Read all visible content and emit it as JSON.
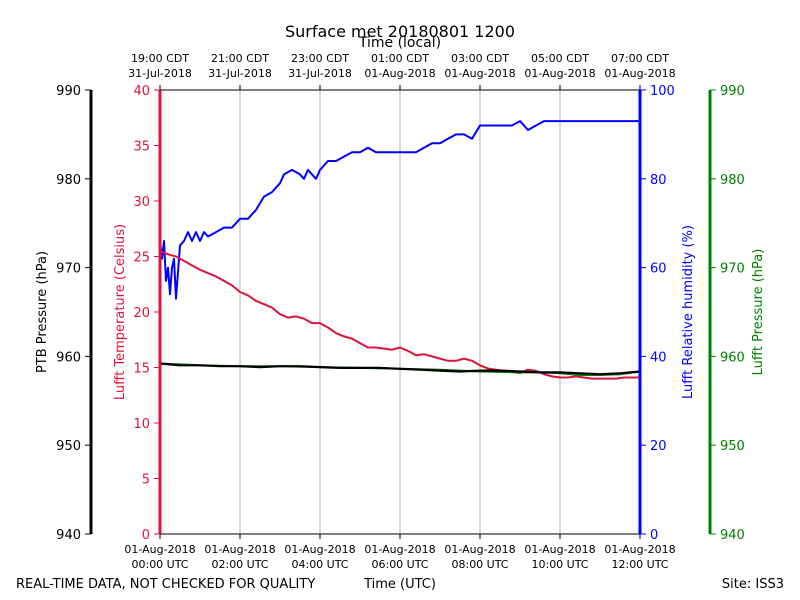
{
  "chart_data": {
    "type": "line",
    "title": "Surface met 20180801 1200",
    "x_top_label": "Time (local)",
    "x_bottom_label": "Time (UTC)",
    "footer_left": "REAL-TIME DATA, NOT CHECKED FOR QUALITY",
    "footer_right": "Site: ISS3",
    "x_range_hours": [
      0,
      12
    ],
    "x_ticks_utc": [
      {
        "hour": 0,
        "line1": "01-Aug-2018",
        "line2": "00:00 UTC"
      },
      {
        "hour": 2,
        "line1": "01-Aug-2018",
        "line2": "02:00 UTC"
      },
      {
        "hour": 4,
        "line1": "01-Aug-2018",
        "line2": "04:00 UTC"
      },
      {
        "hour": 6,
        "line1": "01-Aug-2018",
        "line2": "06:00 UTC"
      },
      {
        "hour": 8,
        "line1": "01-Aug-2018",
        "line2": "08:00 UTC"
      },
      {
        "hour": 10,
        "line1": "01-Aug-2018",
        "line2": "10:00 UTC"
      },
      {
        "hour": 12,
        "line1": "01-Aug-2018",
        "line2": "12:00 UTC"
      }
    ],
    "x_ticks_local": [
      {
        "hour": 0,
        "line1": "19:00 CDT",
        "line2": "31-Jul-2018"
      },
      {
        "hour": 2,
        "line1": "21:00 CDT",
        "line2": "31-Jul-2018"
      },
      {
        "hour": 4,
        "line1": "23:00 CDT",
        "line2": "31-Jul-2018"
      },
      {
        "hour": 6,
        "line1": "01:00 CDT",
        "line2": "01-Aug-2018"
      },
      {
        "hour": 8,
        "line1": "03:00 CDT",
        "line2": "01-Aug-2018"
      },
      {
        "hour": 10,
        "line1": "05:00 CDT",
        "line2": "01-Aug-2018"
      },
      {
        "hour": 12,
        "line1": "07:00 CDT",
        "line2": "01-Aug-2018"
      }
    ],
    "axes": {
      "ptb_pressure": {
        "label": "PTB Pressure (hPa)",
        "ylim": [
          940,
          990
        ],
        "ticks": [
          940,
          950,
          960,
          970,
          980,
          990
        ],
        "color": "#000000"
      },
      "temperature": {
        "label": "Lufft Temperature (Celsius)",
        "ylim": [
          0,
          40
        ],
        "ticks": [
          0,
          5,
          10,
          15,
          20,
          25,
          30,
          35,
          40
        ],
        "color": "#dc143c"
      },
      "humidity": {
        "label": "Lufft Relative humidity (%)",
        "ylim": [
          0,
          100
        ],
        "ticks": [
          0,
          20,
          40,
          60,
          80,
          100
        ],
        "color": "#0000ff"
      },
      "lufft_pressure": {
        "label": "Lufft Pressure (hPa)",
        "ylim": [
          940,
          990
        ],
        "ticks": [
          940,
          950,
          960,
          970,
          980,
          990
        ],
        "color": "#008000"
      }
    },
    "series": [
      {
        "name": "Lufft Relative humidity",
        "axis": "humidity",
        "color": "#0000ff",
        "points": [
          [
            0,
            66
          ],
          [
            0.05,
            62
          ],
          [
            0.1,
            66
          ],
          [
            0.15,
            57
          ],
          [
            0.2,
            60
          ],
          [
            0.25,
            54
          ],
          [
            0.3,
            60
          ],
          [
            0.35,
            62
          ],
          [
            0.4,
            53
          ],
          [
            0.5,
            65
          ],
          [
            0.6,
            66
          ],
          [
            0.7,
            68
          ],
          [
            0.8,
            66
          ],
          [
            0.9,
            68
          ],
          [
            1.0,
            66
          ],
          [
            1.1,
            68
          ],
          [
            1.2,
            67
          ],
          [
            1.4,
            68
          ],
          [
            1.6,
            69
          ],
          [
            1.8,
            69
          ],
          [
            2.0,
            71
          ],
          [
            2.2,
            71
          ],
          [
            2.3,
            72
          ],
          [
            2.4,
            73
          ],
          [
            2.6,
            76
          ],
          [
            2.8,
            77
          ],
          [
            3.0,
            79
          ],
          [
            3.1,
            81
          ],
          [
            3.3,
            82
          ],
          [
            3.5,
            81
          ],
          [
            3.6,
            80
          ],
          [
            3.7,
            82
          ],
          [
            3.8,
            81
          ],
          [
            3.9,
            80
          ],
          [
            4.0,
            82
          ],
          [
            4.2,
            84
          ],
          [
            4.4,
            84
          ],
          [
            4.6,
            85
          ],
          [
            4.8,
            86
          ],
          [
            5.0,
            86
          ],
          [
            5.2,
            87
          ],
          [
            5.4,
            86
          ],
          [
            5.6,
            86
          ],
          [
            5.8,
            86
          ],
          [
            6.0,
            86
          ],
          [
            6.2,
            86
          ],
          [
            6.4,
            86
          ],
          [
            6.6,
            87
          ],
          [
            6.8,
            88
          ],
          [
            7.0,
            88
          ],
          [
            7.2,
            89
          ],
          [
            7.4,
            90
          ],
          [
            7.6,
            90
          ],
          [
            7.8,
            89
          ],
          [
            8.0,
            92
          ],
          [
            8.2,
            92
          ],
          [
            8.4,
            92
          ],
          [
            8.6,
            92
          ],
          [
            8.8,
            92
          ],
          [
            9.0,
            93
          ],
          [
            9.2,
            91
          ],
          [
            9.4,
            92
          ],
          [
            9.6,
            93
          ],
          [
            9.8,
            93
          ],
          [
            10.0,
            93
          ],
          [
            10.2,
            93
          ],
          [
            10.4,
            93
          ],
          [
            10.6,
            93
          ],
          [
            10.8,
            93
          ],
          [
            11.0,
            93
          ],
          [
            11.2,
            93
          ],
          [
            11.4,
            93
          ],
          [
            11.6,
            93
          ],
          [
            11.8,
            93
          ],
          [
            12.0,
            93
          ]
        ]
      },
      {
        "name": "Lufft Temperature",
        "axis": "temperature",
        "color": "#dc143c",
        "points": [
          [
            0,
            25.5
          ],
          [
            0.2,
            25.2
          ],
          [
            0.4,
            25.0
          ],
          [
            0.6,
            24.6
          ],
          [
            0.8,
            24.2
          ],
          [
            1.0,
            23.8
          ],
          [
            1.2,
            23.5
          ],
          [
            1.4,
            23.2
          ],
          [
            1.6,
            22.8
          ],
          [
            1.8,
            22.4
          ],
          [
            2.0,
            21.8
          ],
          [
            2.2,
            21.5
          ],
          [
            2.4,
            21.0
          ],
          [
            2.6,
            20.7
          ],
          [
            2.8,
            20.4
          ],
          [
            3.0,
            19.8
          ],
          [
            3.2,
            19.5
          ],
          [
            3.4,
            19.6
          ],
          [
            3.6,
            19.4
          ],
          [
            3.8,
            19.0
          ],
          [
            4.0,
            19.0
          ],
          [
            4.2,
            18.6
          ],
          [
            4.4,
            18.1
          ],
          [
            4.6,
            17.8
          ],
          [
            4.8,
            17.6
          ],
          [
            5.0,
            17.2
          ],
          [
            5.2,
            16.8
          ],
          [
            5.4,
            16.8
          ],
          [
            5.6,
            16.7
          ],
          [
            5.8,
            16.6
          ],
          [
            6.0,
            16.8
          ],
          [
            6.2,
            16.5
          ],
          [
            6.4,
            16.1
          ],
          [
            6.6,
            16.2
          ],
          [
            6.8,
            16.0
          ],
          [
            7.0,
            15.8
          ],
          [
            7.2,
            15.6
          ],
          [
            7.4,
            15.6
          ],
          [
            7.6,
            15.8
          ],
          [
            7.8,
            15.6
          ],
          [
            8.0,
            15.2
          ],
          [
            8.2,
            14.9
          ],
          [
            8.4,
            14.8
          ],
          [
            8.6,
            14.7
          ],
          [
            8.8,
            14.6
          ],
          [
            9.0,
            14.5
          ],
          [
            9.2,
            14.8
          ],
          [
            9.4,
            14.7
          ],
          [
            9.6,
            14.4
          ],
          [
            9.8,
            14.2
          ],
          [
            10.0,
            14.1
          ],
          [
            10.2,
            14.1
          ],
          [
            10.4,
            14.2
          ],
          [
            10.6,
            14.1
          ],
          [
            10.8,
            14.0
          ],
          [
            11.0,
            14.0
          ],
          [
            11.2,
            14.0
          ],
          [
            11.4,
            14.0
          ],
          [
            11.6,
            14.1
          ],
          [
            11.8,
            14.1
          ],
          [
            12.0,
            14.1
          ]
        ]
      },
      {
        "name": "Lufft Pressure",
        "axis": "lufft_pressure",
        "color": "#008000",
        "points": [
          [
            0,
            959.2
          ],
          [
            1,
            959.0
          ],
          [
            2,
            958.9
          ],
          [
            3,
            958.9
          ],
          [
            4,
            958.8
          ],
          [
            5,
            958.7
          ],
          [
            6,
            958.6
          ],
          [
            7,
            958.5
          ],
          [
            8,
            958.3
          ],
          [
            9,
            958.2
          ],
          [
            9.5,
            958.2
          ],
          [
            10,
            958.1
          ],
          [
            10.5,
            957.9
          ],
          [
            11,
            957.9
          ],
          [
            11.5,
            958.0
          ],
          [
            12,
            958.3
          ]
        ]
      },
      {
        "name": "PTB Pressure",
        "axis": "ptb_pressure",
        "color": "#000000",
        "points": [
          [
            0,
            959.2
          ],
          [
            0.5,
            959.0
          ],
          [
            1,
            959.0
          ],
          [
            1.5,
            958.9
          ],
          [
            2,
            958.9
          ],
          [
            2.5,
            958.8
          ],
          [
            3,
            958.9
          ],
          [
            3.5,
            958.9
          ],
          [
            4,
            958.8
          ],
          [
            4.5,
            958.7
          ],
          [
            5,
            958.7
          ],
          [
            5.5,
            958.7
          ],
          [
            6,
            958.6
          ],
          [
            6.5,
            958.5
          ],
          [
            7,
            958.4
          ],
          [
            7.5,
            958.3
          ],
          [
            8,
            958.4
          ],
          [
            8.5,
            958.4
          ],
          [
            9,
            958.3
          ],
          [
            9.5,
            958.2
          ],
          [
            10,
            958.2
          ],
          [
            10.5,
            958.1
          ],
          [
            11,
            958.0
          ],
          [
            11.5,
            958.1
          ],
          [
            12,
            958.3
          ]
        ]
      }
    ]
  }
}
